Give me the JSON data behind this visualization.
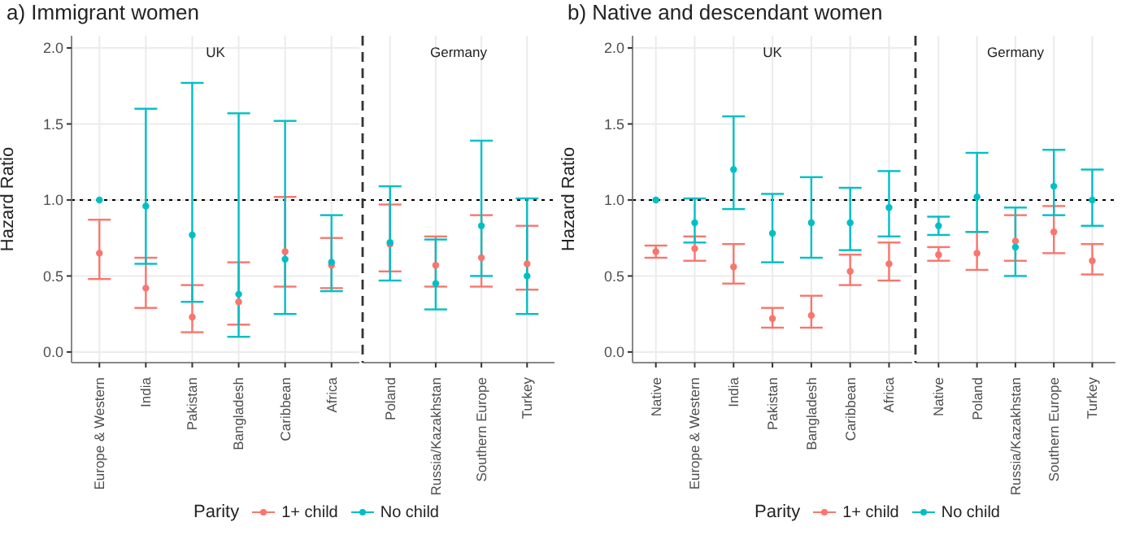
{
  "chart_data": [
    {
      "type": "scatter",
      "title": "a) Immigrant women",
      "subtitle": "UK",
      "ylabel": "Hazard Ratio",
      "categories": [
        "Europe & Western",
        "India",
        "Pakistan",
        "Bangladesh",
        "Caribbean",
        "Africa"
      ],
      "series": [
        {
          "color": "#f8766d",
          "values": [
            0.65,
            0.42,
            0.23,
            0.33,
            0.66,
            0.57
          ],
          "errors": [
            [
              0.48,
              0.87
            ],
            [
              0.29,
              0.62
            ],
            [
              0.13,
              0.44
            ],
            [
              0.18,
              0.59
            ],
            [
              0.43,
              1.02
            ],
            [
              0.42,
              0.75
            ]
          ]
        },
        {
          "color": "#00bfc4",
          "values": [
            1.0,
            0.96,
            0.77,
            0.38,
            0.61,
            0.59
          ],
          "errors": [
            null,
            [
              0.58,
              1.6
            ],
            [
              0.33,
              1.77
            ],
            [
              0.1,
              1.57
            ],
            [
              0.25,
              1.52
            ],
            [
              0.4,
              0.9
            ]
          ]
        }
      ],
      "ylim": [
        -0.07,
        2.08
      ],
      "yticks": [
        {
          "value": 0,
          "label": "0.0"
        },
        0.5,
        {
          "value": 1,
          "label": "1.0"
        },
        1.5,
        {
          "value": 2,
          "label": "2.0"
        }
      ],
      "grid": true,
      "marker": "circle",
      "ref_lines": [
        {
          "axis": "y",
          "value": 1,
          "line_style": "dotted",
          "color": "#000000"
        }
      ]
    },
    {
      "type": "scatter",
      "subtitle": "Germany",
      "legend_title": "Parity",
      "categories": [
        "Poland",
        "Russia/Kazakhstan",
        "Southern Europe",
        "Turkey"
      ],
      "series": [
        {
          "name": "1+ child",
          "color": "#f8766d",
          "values": [
            0.71,
            0.57,
            0.62,
            0.58
          ],
          "errors": [
            [
              0.53,
              0.97
            ],
            [
              0.43,
              0.76
            ],
            [
              0.43,
              0.9
            ],
            [
              0.41,
              0.83
            ]
          ]
        },
        {
          "name": "No child",
          "color": "#00bfc4",
          "values": [
            0.72,
            0.45,
            0.83,
            0.5
          ],
          "errors": [
            [
              0.47,
              1.09
            ],
            [
              0.28,
              0.74
            ],
            [
              0.5,
              1.39
            ],
            [
              0.25,
              1.01
            ]
          ]
        }
      ],
      "ylim": [
        -0.07,
        2.08
      ],
      "yticks": [
        0,
        0.5,
        1,
        1.5,
        2
      ],
      "grid": true,
      "tick_labels": "x",
      "legend": "bottom",
      "marker": "circle",
      "ref_lines": [
        {
          "axis": "y",
          "value": 1,
          "line_style": "dotted",
          "color": "#000000"
        }
      ]
    },
    {
      "type": "scatter",
      "title": "b) Native and descendant women",
      "subtitle": "UK",
      "ylabel": "Hazard Ratio",
      "categories": [
        "Native",
        "Europe & Western",
        "India",
        "Pakistan",
        "Bangladesh",
        "Caribbean",
        "Africa"
      ],
      "series": [
        {
          "color": "#f8766d",
          "values": [
            0.66,
            0.68,
            0.56,
            0.22,
            0.24,
            0.53,
            0.58
          ],
          "errors": [
            [
              0.62,
              0.7
            ],
            [
              0.6,
              0.76
            ],
            [
              0.45,
              0.71
            ],
            [
              0.16,
              0.29
            ],
            [
              0.16,
              0.37
            ],
            [
              0.44,
              0.64
            ],
            [
              0.47,
              0.72
            ]
          ]
        },
        {
          "color": "#00bfc4",
          "values": [
            1.0,
            0.85,
            1.2,
            0.78,
            0.85,
            0.85,
            0.95
          ],
          "errors": [
            null,
            [
              0.72,
              1.01
            ],
            [
              0.94,
              1.55
            ],
            [
              0.59,
              1.04
            ],
            [
              0.62,
              1.15
            ],
            [
              0.67,
              1.08
            ],
            [
              0.76,
              1.19
            ]
          ]
        }
      ],
      "ylim": [
        -0.07,
        2.08
      ],
      "yticks": [
        {
          "value": 0,
          "label": "0.0"
        },
        0.5,
        {
          "value": 1,
          "label": "1.0"
        },
        1.5,
        {
          "value": 2,
          "label": "2.0"
        }
      ],
      "grid": true,
      "marker": "circle",
      "ref_lines": [
        {
          "axis": "y",
          "value": 1,
          "line_style": "dotted",
          "color": "#000000"
        }
      ]
    },
    {
      "type": "scatter",
      "subtitle": "Germany",
      "legend_title": "Parity",
      "categories": [
        "Native",
        "Poland",
        "Russia/Kazakhstan",
        "Southern Europe",
        "Turkey"
      ],
      "series": [
        {
          "name": "1+ child",
          "color": "#f8766d",
          "values": [
            0.64,
            0.65,
            0.73,
            0.79,
            0.6
          ],
          "errors": [
            [
              0.6,
              0.69
            ],
            [
              0.54,
              0.79
            ],
            [
              0.6,
              0.9
            ],
            [
              0.65,
              0.96
            ],
            [
              0.51,
              0.71
            ]
          ]
        },
        {
          "name": "No child",
          "color": "#00bfc4",
          "values": [
            0.83,
            1.02,
            0.69,
            1.09,
            1.0
          ],
          "errors": [
            [
              0.77,
              0.89
            ],
            [
              0.79,
              1.31
            ],
            [
              0.5,
              0.95
            ],
            [
              0.9,
              1.33
            ],
            [
              0.83,
              1.2
            ]
          ]
        }
      ],
      "ylim": [
        -0.07,
        2.08
      ],
      "yticks": [
        0,
        0.5,
        1,
        1.5,
        2
      ],
      "grid": true,
      "tick_labels": "x",
      "legend": "bottom",
      "marker": "circle",
      "ref_lines": [
        {
          "axis": "y",
          "value": 1,
          "line_style": "dotted",
          "color": "#000000"
        }
      ]
    }
  ]
}
